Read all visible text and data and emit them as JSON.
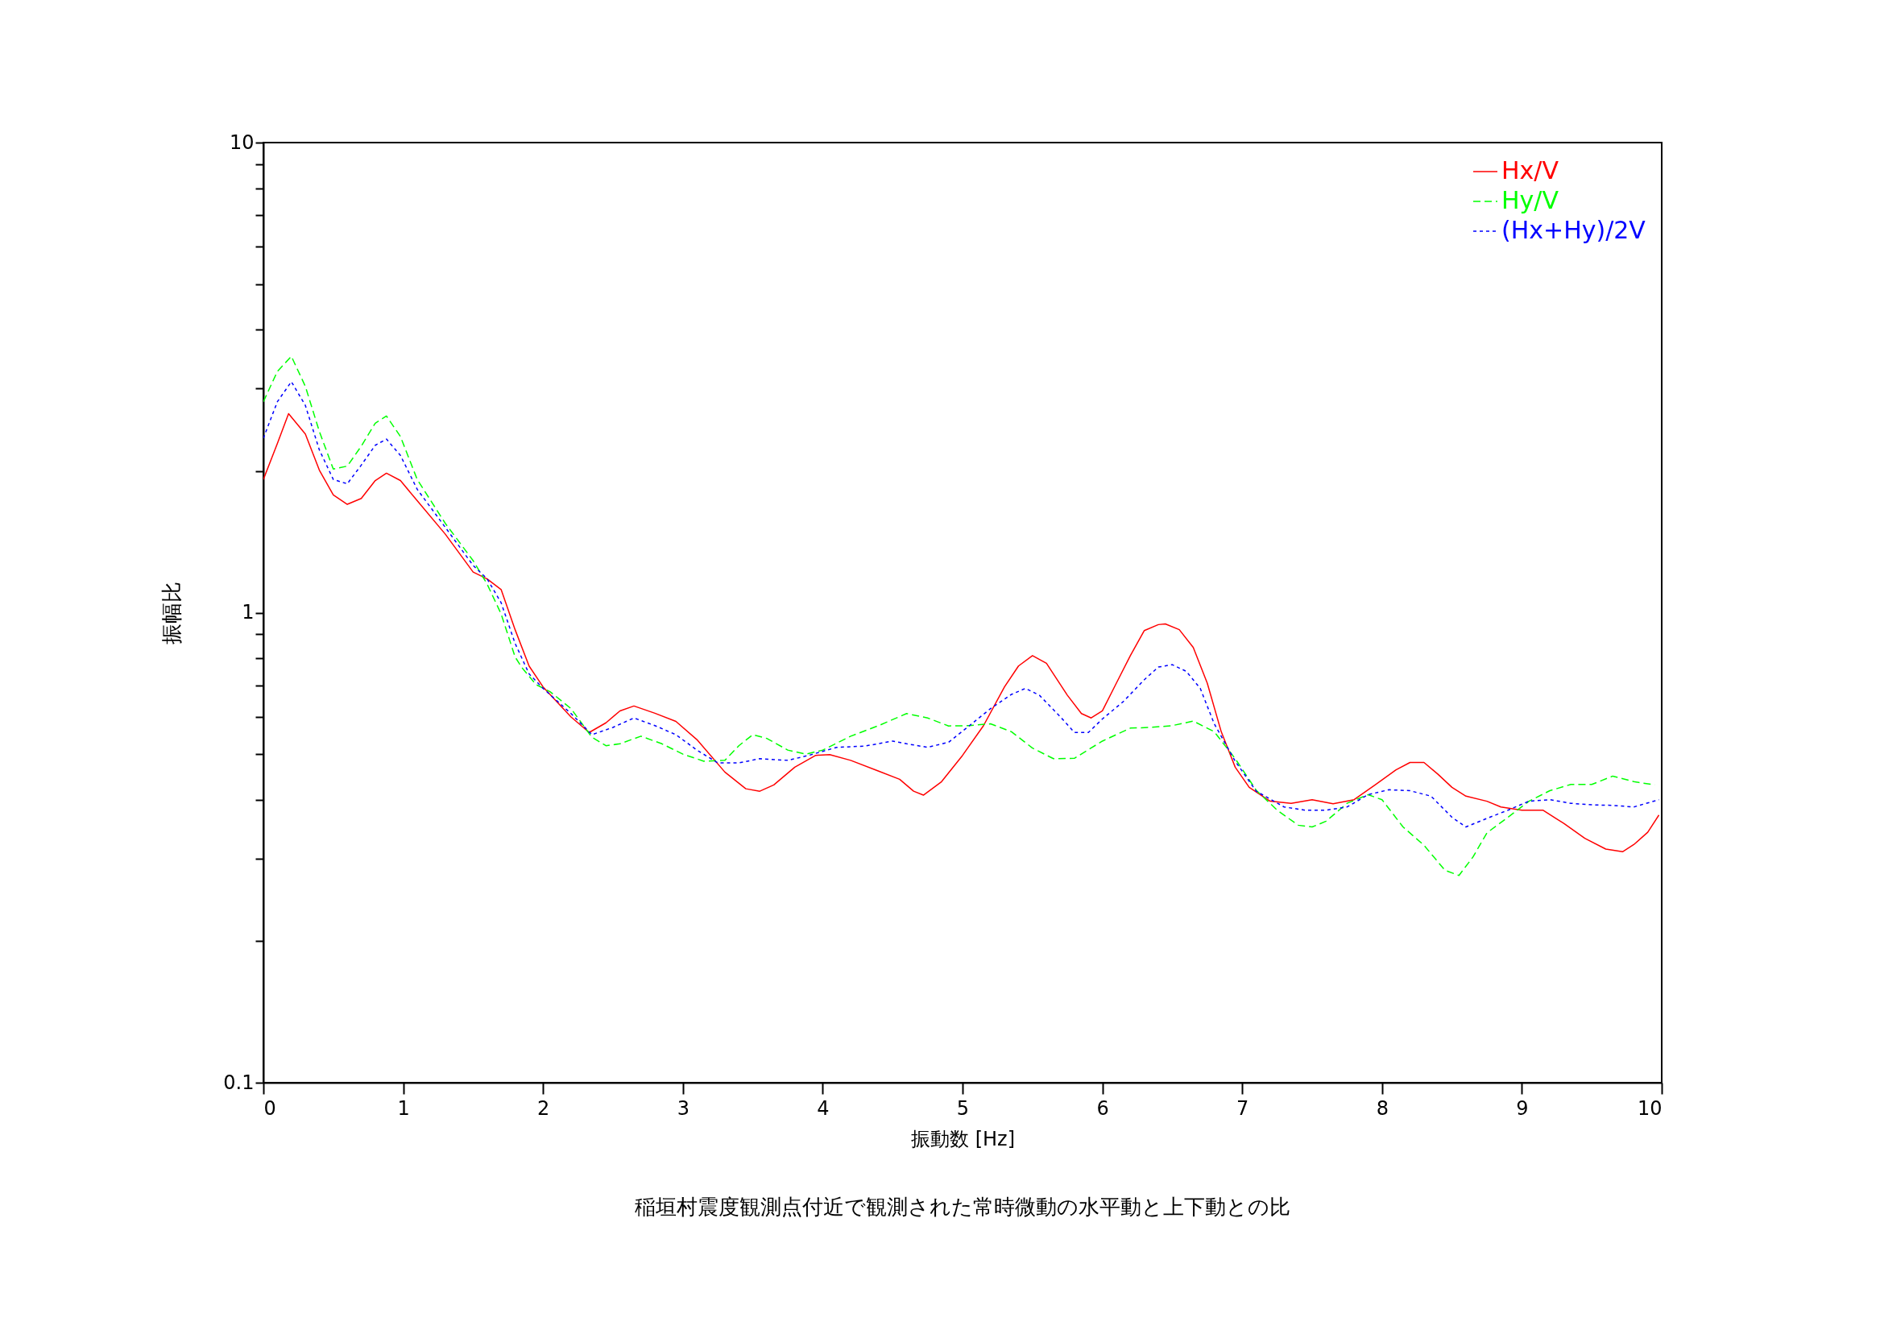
{
  "chart_data": {
    "type": "line",
    "title": "稲垣村震度観測点付近で観測された常時微動の水平動と上下動との比",
    "xlabel": "振動数 [Hz]",
    "ylabel": "振幅比",
    "log": "y",
    "xlim": [
      0,
      10
    ],
    "ylim": [
      0.1,
      10
    ],
    "xticks": [
      0,
      1,
      2,
      3,
      4,
      5,
      6,
      7,
      8,
      9,
      10
    ],
    "yticks": [
      0.1,
      {
        "value": 0.2,
        "label": null
      },
      {
        "value": 0.3,
        "label": null
      },
      {
        "value": 0.4,
        "label": null
      },
      {
        "value": 0.5,
        "label": null
      },
      {
        "value": 0.6,
        "label": null
      },
      {
        "value": 0.7,
        "label": null
      },
      {
        "value": 0.8,
        "label": null
      },
      {
        "value": 0.9,
        "label": null
      },
      1,
      {
        "value": 2,
        "label": null
      },
      {
        "value": 3,
        "label": null
      },
      {
        "value": 4,
        "label": null
      },
      {
        "value": 5,
        "label": null
      },
      {
        "value": 6,
        "label": null
      },
      {
        "value": 7,
        "label": null
      },
      {
        "value": 8,
        "label": null
      },
      {
        "value": 9,
        "label": null
      },
      10
    ],
    "grid": false,
    "legend": "top right",
    "marker": "none",
    "series": [
      {
        "name": "Hx/V",
        "color": "#ff0000",
        "line_style": "solid",
        "x": [
          0,
          0.1,
          0.18,
          0.3,
          0.4,
          0.5,
          0.6,
          0.7,
          0.8,
          0.88,
          0.98,
          1.1,
          1.3,
          1.5,
          1.6,
          1.7,
          1.8,
          1.9,
          2.0,
          2.2,
          2.33,
          2.45,
          2.55,
          2.65,
          2.8,
          2.95,
          3.1,
          3.3,
          3.45,
          3.55,
          3.65,
          3.8,
          3.95,
          4.05,
          4.2,
          4.4,
          4.55,
          4.65,
          4.72,
          4.85,
          5.0,
          5.15,
          5.3,
          5.4,
          5.5,
          5.6,
          5.75,
          5.85,
          5.92,
          6.0,
          6.1,
          6.2,
          6.3,
          6.4,
          6.45,
          6.55,
          6.65,
          6.75,
          6.85,
          6.95,
          7.05,
          7.2,
          7.35,
          7.5,
          7.65,
          7.8,
          7.95,
          8.1,
          8.2,
          8.3,
          8.4,
          8.5,
          8.6,
          8.75,
          8.85,
          9.0,
          9.15,
          9.3,
          9.45,
          9.6,
          9.72,
          9.8,
          9.9,
          9.98
        ],
        "values": [
          1.92,
          2.29,
          2.65,
          2.4,
          2.01,
          1.78,
          1.7,
          1.75,
          1.91,
          1.98,
          1.91,
          1.73,
          1.47,
          1.22,
          1.18,
          1.12,
          0.92,
          0.77,
          0.695,
          0.6,
          0.556,
          0.583,
          0.618,
          0.633,
          0.611,
          0.587,
          0.537,
          0.458,
          0.422,
          0.417,
          0.43,
          0.469,
          0.497,
          0.499,
          0.485,
          0.46,
          0.442,
          0.417,
          0.409,
          0.437,
          0.497,
          0.575,
          0.695,
          0.77,
          0.81,
          0.78,
          0.667,
          0.61,
          0.597,
          0.618,
          0.708,
          0.81,
          0.916,
          0.943,
          0.946,
          0.92,
          0.843,
          0.708,
          0.558,
          0.469,
          0.425,
          0.397,
          0.393,
          0.4,
          0.392,
          0.4,
          0.43,
          0.463,
          0.48,
          0.48,
          0.453,
          0.425,
          0.407,
          0.397,
          0.386,
          0.38,
          0.38,
          0.356,
          0.331,
          0.314,
          0.31,
          0.321,
          0.341,
          0.371
        ]
      },
      {
        "name": "Hy/V",
        "color": "#00ff00",
        "line_style": "dashed",
        "x": [
          0,
          0.1,
          0.2,
          0.3,
          0.4,
          0.5,
          0.6,
          0.7,
          0.8,
          0.88,
          0.98,
          1.1,
          1.3,
          1.5,
          1.6,
          1.7,
          1.8,
          1.85,
          1.95,
          2.05,
          2.2,
          2.35,
          2.45,
          2.55,
          2.7,
          2.85,
          3.0,
          3.15,
          3.3,
          3.4,
          3.5,
          3.6,
          3.75,
          3.88,
          4.0,
          4.2,
          4.4,
          4.6,
          4.75,
          4.9,
          5.05,
          5.2,
          5.35,
          5.5,
          5.65,
          5.8,
          6.0,
          6.2,
          6.35,
          6.5,
          6.65,
          6.8,
          6.95,
          7.1,
          7.25,
          7.4,
          7.5,
          7.6,
          7.75,
          7.9,
          8.0,
          8.15,
          8.3,
          8.45,
          8.55,
          8.65,
          8.75,
          8.9,
          9.05,
          9.2,
          9.35,
          9.5,
          9.65,
          9.8,
          9.95
        ],
        "values": [
          2.81,
          3.26,
          3.51,
          3.03,
          2.43,
          2.02,
          2.05,
          2.26,
          2.53,
          2.62,
          2.37,
          1.92,
          1.55,
          1.29,
          1.15,
          0.994,
          0.805,
          0.763,
          0.703,
          0.679,
          0.625,
          0.543,
          0.521,
          0.526,
          0.546,
          0.526,
          0.5,
          0.483,
          0.485,
          0.521,
          0.55,
          0.54,
          0.51,
          0.5,
          0.51,
          0.546,
          0.575,
          0.61,
          0.597,
          0.574,
          0.575,
          0.58,
          0.558,
          0.515,
          0.489,
          0.49,
          0.533,
          0.568,
          0.57,
          0.575,
          0.588,
          0.558,
          0.489,
          0.419,
          0.38,
          0.353,
          0.35,
          0.36,
          0.393,
          0.41,
          0.4,
          0.35,
          0.32,
          0.283,
          0.276,
          0.302,
          0.34,
          0.367,
          0.397,
          0.418,
          0.431,
          0.431,
          0.449,
          0.437,
          0.43
        ]
      },
      {
        "name": "(Hx+Hy)/2V",
        "color": "#0000ff",
        "line_style": "dotted",
        "x": [
          0,
          0.1,
          0.2,
          0.3,
          0.4,
          0.5,
          0.6,
          0.7,
          0.8,
          0.88,
          0.98,
          1.1,
          1.3,
          1.5,
          1.6,
          1.7,
          1.8,
          1.9,
          2.0,
          2.2,
          2.35,
          2.5,
          2.65,
          2.8,
          2.95,
          3.1,
          3.25,
          3.4,
          3.55,
          3.75,
          3.9,
          4.1,
          4.3,
          4.5,
          4.6,
          4.75,
          4.9,
          5.05,
          5.2,
          5.35,
          5.45,
          5.55,
          5.7,
          5.8,
          5.9,
          6.0,
          6.15,
          6.3,
          6.4,
          6.5,
          6.6,
          6.7,
          6.8,
          6.95,
          7.1,
          7.3,
          7.45,
          7.6,
          7.75,
          7.9,
          8.05,
          8.2,
          8.35,
          8.5,
          8.6,
          8.75,
          8.9,
          9.05,
          9.2,
          9.35,
          9.5,
          9.65,
          9.8,
          9.98
        ],
        "values": [
          2.35,
          2.81,
          3.1,
          2.76,
          2.22,
          1.92,
          1.88,
          2.06,
          2.27,
          2.34,
          2.16,
          1.83,
          1.52,
          1.26,
          1.18,
          1.05,
          0.86,
          0.741,
          0.69,
          0.61,
          0.55,
          0.57,
          0.597,
          0.575,
          0.55,
          0.51,
          0.479,
          0.479,
          0.489,
          0.485,
          0.497,
          0.517,
          0.52,
          0.533,
          0.526,
          0.517,
          0.53,
          0.575,
          0.625,
          0.67,
          0.69,
          0.667,
          0.6,
          0.556,
          0.556,
          0.594,
          0.647,
          0.72,
          0.766,
          0.775,
          0.75,
          0.69,
          0.58,
          0.483,
          0.417,
          0.386,
          0.38,
          0.38,
          0.386,
          0.41,
          0.42,
          0.418,
          0.407,
          0.367,
          0.35,
          0.365,
          0.38,
          0.397,
          0.4,
          0.393,
          0.39,
          0.389,
          0.386,
          0.4
        ]
      }
    ]
  }
}
